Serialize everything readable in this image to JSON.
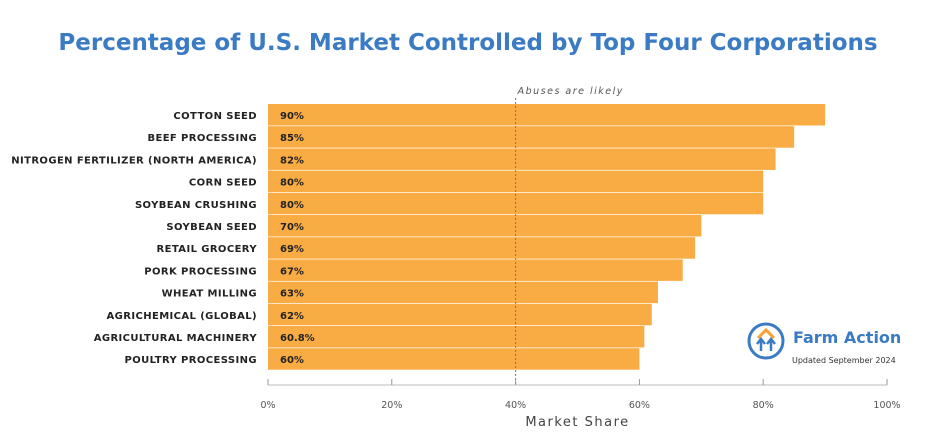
{
  "chart_data": {
    "type": "bar",
    "orientation": "horizontal",
    "title": "Percentage of U.S. Market Controlled by Top Four Corporations",
    "xlabel": "Market Share",
    "xlim": [
      0,
      100
    ],
    "xticks": [
      "0%",
      "20%",
      "40%",
      "60%",
      "80%",
      "100%"
    ],
    "categories": [
      "COTTON SEED",
      "BEEF PROCESSING",
      "NITROGEN FERTILIZER (NORTH AMERICA)",
      "CORN SEED",
      "SOYBEAN CRUSHING",
      "SOYBEAN SEED",
      "RETAIL GROCERY",
      "PORK PROCESSING",
      "WHEAT MILLING",
      "AGRICHEMICAL (GLOBAL)",
      "AGRICULTURAL MACHINERY",
      "POULTRY PROCESSING"
    ],
    "values": [
      90,
      85,
      82,
      80,
      80,
      70,
      69,
      67,
      63,
      62,
      60.8,
      60
    ],
    "labels": [
      "90%",
      "85%",
      "82%",
      "80%",
      "80%",
      "70%",
      "69%",
      "67%",
      "63%",
      "62%",
      "60.8%",
      "60%"
    ],
    "threshold": {
      "value": 40,
      "label": "Abuses are likely"
    },
    "bar_color": "#f9ac43"
  },
  "branding": {
    "name": "Farm Action",
    "updated": "Updated September 2024",
    "color": "#3a7bc4"
  }
}
